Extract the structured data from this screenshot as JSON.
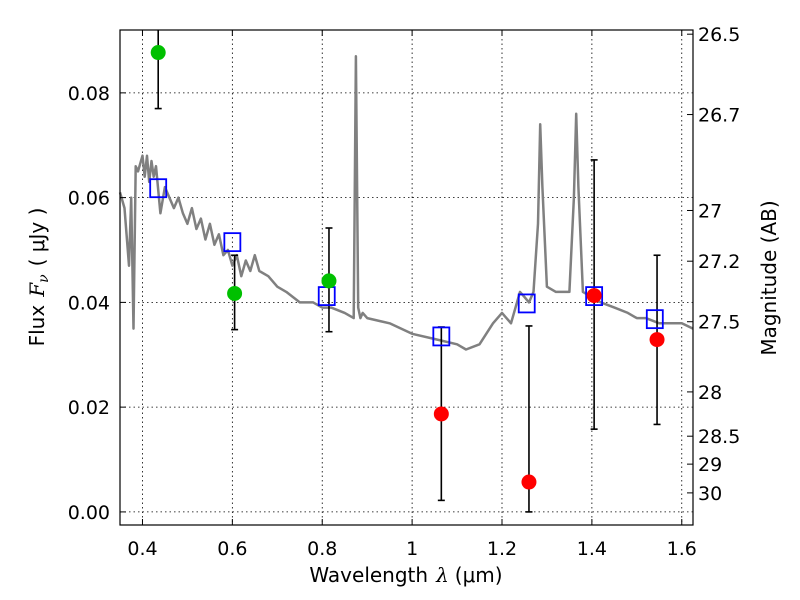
{
  "chart_data": {
    "type": "scatter",
    "xlabel_prefix": "Wavelength",
    "xlabel_symbol": "λ",
    "xlabel_unit": "(μm)",
    "ylabel_left_prefix": "Flux",
    "ylabel_left_symbol": "F",
    "ylabel_left_subscript": "ν",
    "ylabel_left_unit": "( μJy )",
    "ylabel_right": "Magnitude (AB)",
    "xlim": [
      0.35,
      1.625
    ],
    "ylim": [
      -0.0025,
      0.092
    ],
    "grid": true,
    "x_ticks": [
      {
        "value": 0.4,
        "label": "0.4"
      },
      {
        "value": 0.6,
        "label": "0.6"
      },
      {
        "value": 0.8,
        "label": "0.8"
      },
      {
        "value": 1.0,
        "label": "1"
      },
      {
        "value": 1.2,
        "label": "1.2"
      },
      {
        "value": 1.4,
        "label": "1.4"
      },
      {
        "value": 1.6,
        "label": "1.6"
      }
    ],
    "y_ticks": [
      {
        "value": 0.0,
        "label": "0.00"
      },
      {
        "value": 0.02,
        "label": "0.02"
      },
      {
        "value": 0.04,
        "label": "0.04"
      },
      {
        "value": 0.06,
        "label": "0.06"
      },
      {
        "value": 0.08,
        "label": "0.08"
      }
    ],
    "magnitude_ticks": [
      "26.5",
      "26.7",
      "27",
      "27.2",
      "27.5",
      "28",
      "28.5",
      "29",
      "30"
    ],
    "model_spectrum": {
      "color": "#808080",
      "x": [
        0.35,
        0.36,
        0.37,
        0.375,
        0.38,
        0.385,
        0.39,
        0.4,
        0.405,
        0.41,
        0.415,
        0.42,
        0.425,
        0.43,
        0.44,
        0.45,
        0.47,
        0.48,
        0.49,
        0.5,
        0.51,
        0.52,
        0.53,
        0.54,
        0.55,
        0.56,
        0.57,
        0.58,
        0.59,
        0.6,
        0.61,
        0.62,
        0.63,
        0.64,
        0.65,
        0.66,
        0.68,
        0.7,
        0.72,
        0.75,
        0.78,
        0.8,
        0.82,
        0.85,
        0.87,
        0.875,
        0.88,
        0.885,
        0.89,
        0.9,
        0.95,
        1.0,
        1.05,
        1.1,
        1.12,
        1.15,
        1.18,
        1.2,
        1.22,
        1.24,
        1.25,
        1.26,
        1.27,
        1.28,
        1.285,
        1.29,
        1.3,
        1.32,
        1.35,
        1.36,
        1.365,
        1.37,
        1.38,
        1.4,
        1.42,
        1.45,
        1.48,
        1.5,
        1.52,
        1.55,
        1.6,
        1.625
      ],
      "y": [
        0.061,
        0.058,
        0.047,
        0.06,
        0.035,
        0.066,
        0.065,
        0.068,
        0.064,
        0.068,
        0.063,
        0.067,
        0.064,
        0.066,
        0.057,
        0.062,
        0.058,
        0.06,
        0.057,
        0.055,
        0.058,
        0.054,
        0.056,
        0.052,
        0.055,
        0.051,
        0.053,
        0.049,
        0.05,
        0.047,
        0.049,
        0.045,
        0.048,
        0.046,
        0.049,
        0.046,
        0.045,
        0.043,
        0.042,
        0.04,
        0.04,
        0.039,
        0.039,
        0.038,
        0.037,
        0.087,
        0.039,
        0.037,
        0.038,
        0.037,
        0.036,
        0.034,
        0.033,
        0.032,
        0.031,
        0.032,
        0.036,
        0.038,
        0.036,
        0.042,
        0.041,
        0.04,
        0.042,
        0.055,
        0.074,
        0.062,
        0.043,
        0.042,
        0.042,
        0.06,
        0.076,
        0.062,
        0.042,
        0.041,
        0.04,
        0.039,
        0.038,
        0.037,
        0.037,
        0.036,
        0.036,
        0.035
      ]
    },
    "model_boxes": {
      "color": "#0000ff",
      "x": [
        0.435,
        0.6,
        0.81,
        1.065,
        1.255,
        1.405,
        1.54
      ],
      "y": [
        0.0618,
        0.0515,
        0.0412,
        0.0335,
        0.0398,
        0.0412,
        0.0368
      ]
    },
    "detections": {
      "color": "#00c000",
      "x": [
        0.435,
        0.605,
        0.815
      ],
      "y": [
        0.0877,
        0.0417,
        0.0441
      ],
      "err_low": [
        0.077,
        0.0348,
        0.0344
      ],
      "err_high": [
        0.0925,
        0.049,
        0.0542
      ]
    },
    "upper_limits": {
      "color": "#ff0000",
      "x": [
        1.065,
        1.26,
        1.405,
        1.545
      ],
      "y": [
        0.0187,
        0.0057,
        0.0413,
        0.0329
      ],
      "err_low": [
        0.0022,
        0.0,
        0.0158,
        0.0167
      ],
      "err_high": [
        0.0353,
        0.0355,
        0.0672,
        0.049
      ]
    }
  }
}
